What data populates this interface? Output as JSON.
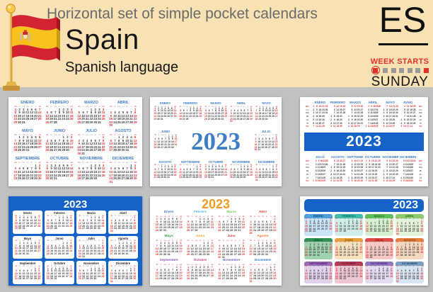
{
  "header": {
    "subtitle": "Horizontal set of simple pocket calendars",
    "title": "Spain",
    "language": "Spanish language",
    "lang_code": "ES",
    "week_starts_label": "WEEK STARTS",
    "week_starts_day": "SUNDAY"
  },
  "year": "2023",
  "weekdays_short": [
    "do",
    "lu",
    "ma",
    "mi",
    "ju",
    "vi",
    "sá"
  ],
  "weekdays_vertical": [
    "DO",
    "LU",
    "MA",
    "MI",
    "JU",
    "VI",
    "SA"
  ],
  "months": [
    {
      "upper": "ENERO",
      "title": "Enero",
      "first_dow": 0,
      "days": 31
    },
    {
      "upper": "FEBRERO",
      "title": "Febrero",
      "first_dow": 3,
      "days": 28
    },
    {
      "upper": "MARZO",
      "title": "Marzo",
      "first_dow": 3,
      "days": 31
    },
    {
      "upper": "ABRIL",
      "title": "Abril",
      "first_dow": 6,
      "days": 30
    },
    {
      "upper": "MAYO",
      "title": "Mayo",
      "first_dow": 1,
      "days": 31
    },
    {
      "upper": "JUNIO",
      "title": "Junio",
      "first_dow": 4,
      "days": 30
    },
    {
      "upper": "JULIO",
      "title": "Julio",
      "first_dow": 6,
      "days": 31
    },
    {
      "upper": "AGOSTO",
      "title": "Agosto",
      "first_dow": 2,
      "days": 31
    },
    {
      "upper": "SEPTIEMBRE",
      "title": "Septiembre",
      "first_dow": 5,
      "days": 30
    },
    {
      "upper": "OCTUBRE",
      "title": "Octubre",
      "first_dow": 0,
      "days": 31
    },
    {
      "upper": "NOVIEMBRE",
      "title": "Noviembre",
      "first_dow": 3,
      "days": 30
    },
    {
      "upper": "DICIEMBRE",
      "title": "Diciembre",
      "first_dow": 5,
      "days": 31
    }
  ],
  "colors": {
    "header_bg": "#F8E2B4",
    "page_bg": "#C1C1C1",
    "red": "#E2312A",
    "calendar_blue": "#3F7EC6",
    "band_blue": "#1563C6",
    "card4_bg": "#1563C6",
    "year_orange": "#F59A28",
    "weekend_red": "#E03030",
    "day_color": "#3A3A3A"
  },
  "card5_month_colors": [
    "#3C78C0",
    "#4FB8E8",
    "#7DC855",
    "#E03030",
    "#2E9E40",
    "#F0A030",
    "#E04050",
    "#F07830",
    "#8E5AB8",
    "#C04888",
    "#7868C8",
    "#3C78C8"
  ],
  "card6_tiles": [
    {
      "header": "#4E9FDA",
      "body": "#C9E4F6",
      "name": "#17427E"
    },
    {
      "header": "#41BDAE",
      "body": "#CFEEE9",
      "name": "#0B6358"
    },
    {
      "header": "#5FBF5C",
      "body": "#D6F0D0",
      "name": "#1D6B24"
    },
    {
      "header": "#8CCB70",
      "body": "#E2F3DA",
      "name": "#2F6E1E"
    },
    {
      "header": "#2F9156",
      "body": "#9FD2AE",
      "name": "#0B5129"
    },
    {
      "header": "#E9A13B",
      "body": "#F7E0BE",
      "name": "#8F4A06"
    },
    {
      "header": "#DB4F46",
      "body": "#F6C9C5",
      "name": "#8C120E"
    },
    {
      "header": "#E57F3E",
      "body": "#F5D7BE",
      "name": "#8E3D04"
    },
    {
      "header": "#9A68B4",
      "body": "#E0D1EC",
      "name": "#55217B"
    },
    {
      "header": "#B13B54",
      "body": "#EFC7D3",
      "name": "#6E1430"
    },
    {
      "header": "#9277BE",
      "body": "#E5DBF2",
      "name": "#462B80"
    },
    {
      "header": "#7E9FC5",
      "body": "#D8E4F1",
      "name": "#2B4A77"
    }
  ]
}
